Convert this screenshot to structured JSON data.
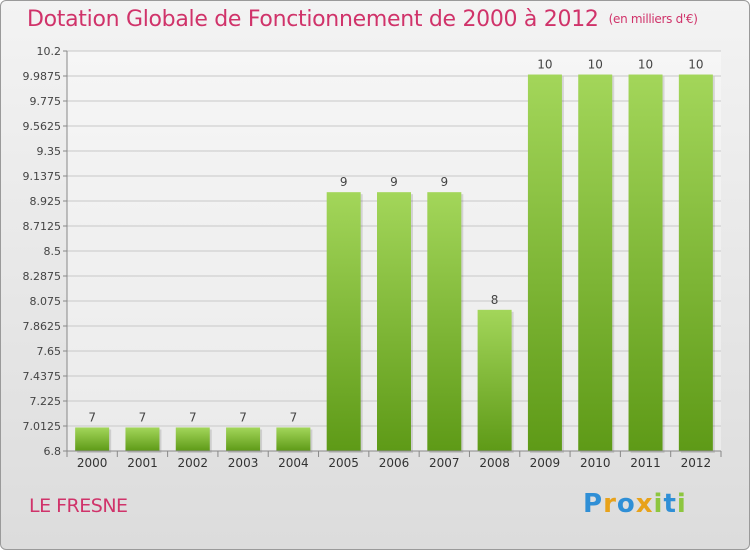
{
  "title": "Dotation Globale de Fonctionnement de 2000 à 2012",
  "title_unit": "(en milliers d'€)",
  "commune": "LE FRESNE",
  "logo_text": "Proxiti",
  "colors": {
    "title": "#d0336a",
    "bar_top": "#a3d65a",
    "bar_bottom": "#5e9a17"
  },
  "chart_data": {
    "type": "bar",
    "title": "Dotation Globale de Fonctionnement de 2000 à 2012",
    "subtitle": "(en milliers d'€)",
    "categories": [
      "2000",
      "2001",
      "2002",
      "2003",
      "2004",
      "2005",
      "2006",
      "2007",
      "2008",
      "2009",
      "2010",
      "2011",
      "2012"
    ],
    "values": [
      7,
      7,
      7,
      7,
      7,
      9,
      9,
      9,
      8,
      10,
      10,
      10,
      10
    ],
    "value_labels": [
      "7",
      "7",
      "7",
      "7",
      "7",
      "9",
      "9",
      "9",
      "8",
      "10",
      "10",
      "10",
      "10"
    ],
    "ylim": [
      6.8,
      10.2
    ],
    "yticks": [
      6.8,
      7.0125,
      7.225,
      7.4375,
      7.65,
      7.8625,
      8.075,
      8.2875,
      8.5,
      8.7125,
      8.925,
      9.1375,
      9.35,
      9.5625,
      9.775,
      9.9875,
      10.2
    ],
    "ytick_labels": [
      "6.8",
      "7.0125",
      "7.225",
      "7.4375",
      "7.65",
      "7.8625",
      "8.075",
      "8.2875",
      "8.5",
      "8.7125",
      "8.925",
      "9.1375",
      "9.35",
      "9.5625",
      "9.775",
      "9.9875",
      "10.2"
    ],
    "grid": true,
    "xlabel": "",
    "ylabel": ""
  }
}
